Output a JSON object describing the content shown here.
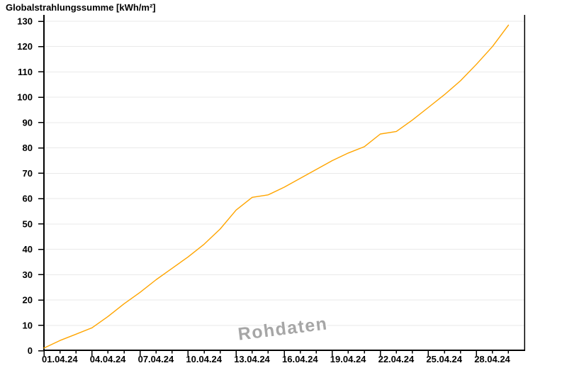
{
  "chart_data": {
    "type": "line",
    "title": "Globalstrahlungssumme [kWh/m²]",
    "watermark": "Rohdaten",
    "legend": "none",
    "grid": "horizontal-only",
    "x_tick_labels": [
      "01.04.24",
      "04.04.24",
      "07.04.24",
      "10.04.24",
      "13.04.24",
      "16.04.24",
      "19.04.24",
      "22.04.24",
      "25.04.24",
      "28.04.24"
    ],
    "x_major_tick_days": [
      0,
      3,
      6,
      9,
      12,
      15,
      18,
      21,
      24,
      27
    ],
    "x_minor_ticks_every_day": true,
    "x_total_days": 30,
    "y_ticks": [
      0,
      10,
      20,
      30,
      40,
      50,
      60,
      70,
      80,
      90,
      100,
      110,
      120,
      130
    ],
    "ylim": [
      0,
      132.5
    ],
    "colors": {
      "line": "#FFA500",
      "grid": "#E9E9E9",
      "axis": "#000000",
      "tick_label": "#000000",
      "watermark": "#979797",
      "watermark_highlight": "#FFFFFF"
    },
    "series": [
      {
        "name": "Globalstrahlungssumme",
        "x_days": [
          0,
          1,
          2,
          3,
          4,
          5,
          6,
          7,
          8,
          9,
          10,
          11,
          12,
          13,
          14,
          15,
          16,
          17,
          18,
          19,
          20,
          21,
          22,
          23,
          24,
          25,
          26,
          27,
          28,
          29
        ],
        "values": [
          1,
          4,
          6.5,
          9,
          13.5,
          18.5,
          23,
          28,
          32.5,
          37,
          42,
          48,
          55.5,
          60.5,
          61.5,
          64.5,
          68,
          71.5,
          75,
          78,
          80.5,
          85.5,
          86.5,
          91,
          96,
          101,
          106.5,
          113,
          120,
          128.5
        ]
      }
    ]
  }
}
